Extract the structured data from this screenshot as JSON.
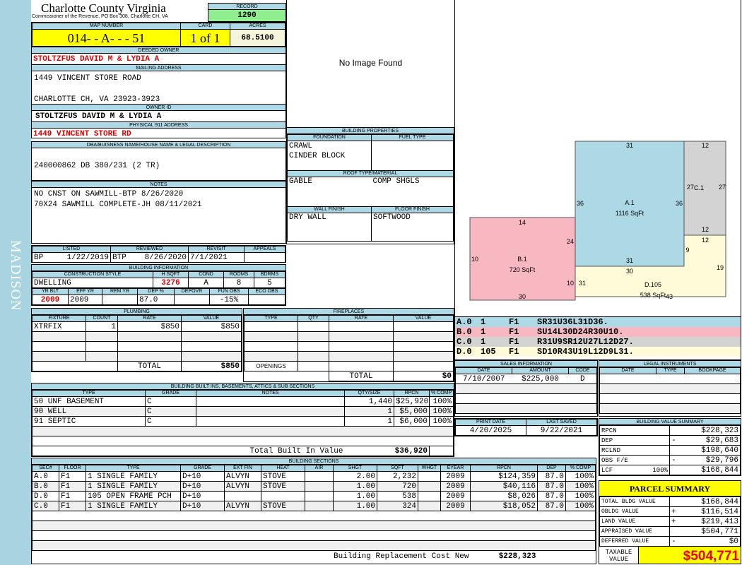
{
  "sidebar": {
    "label": "MADISON"
  },
  "header": {
    "title": "Charlotte County Virginia",
    "subtitle": "Commissioner of the Revenue, PO Box 308, Charlotte CH, VA",
    "record_label": "RECORD",
    "record": "1290"
  },
  "map": {
    "map_label": "MAP NUMBER",
    "map_number": "014- - A- - - 51",
    "card_label": "CARD",
    "card": "1 of 1",
    "acres_label": "ACRES",
    "acres": "68.5100"
  },
  "owner": {
    "deeded_label": "DEEDED OWNER",
    "deeded": "STOLTZFUS DAVID M & LYDIA A",
    "mailing_label": "MAILING ADDRESS",
    "mailing_1": "1449 VINCENT STORE ROAD",
    "mailing_2": "CHARLOTTE CH, VA 23923-3923",
    "id_label": "OWNER ID",
    "id": "STOLTZFUS DAVID M & LYDIA A",
    "physical_label": "PHYSICAL 911 ADDRESS",
    "physical": "1449 VINCENT STORE RD"
  },
  "dba": {
    "label": "DBA/BUISNESS NAME/HOUSE NAME & LEGAL DESCRIPTION",
    "value": "240000862 DB 380/231 (2 TR)"
  },
  "notes": {
    "label": "NOTES",
    "lines": [
      "NO CNST ON SAWMILL-BTP 8/26/2020",
      "70X24 SAWMILL COMPLETE-JH 08/11/2021"
    ]
  },
  "review": {
    "listed_label": "LISTED",
    "listed_by": "BP",
    "listed": "1/22/2019",
    "reviewed_label": "REVIEWED",
    "reviewed_by": "BTP",
    "reviewed": "8/26/2020",
    "revisit_label": "REVISIT",
    "revisit": "7/1/2021",
    "appeals_label": "APPEALS"
  },
  "building_info": {
    "label": "BUILDING INFORMATION",
    "h": [
      "CONSTRUCTION STYLE",
      "H SQFT",
      "COND",
      "ROOMS",
      "BDRMS"
    ],
    "style": "DWELLING",
    "hsqft": "3276",
    "cond": "A",
    "rooms": "8",
    "bdrms": "5",
    "h2": [
      "YR BLT",
      "EFF YR",
      "REM YR",
      "DEP %",
      "DEPOVR",
      "FUN OBS",
      "ECO OBS"
    ],
    "yr_blt": "2009",
    "eff_yr": "2009",
    "dep": "87.0",
    "fun_obs": "-15%"
  },
  "plumbing": {
    "label": "PLUMBING",
    "h": [
      "FIXTURE",
      "COUNT",
      "RATE",
      "VALUE"
    ],
    "rows": [
      [
        "XTRFIX",
        "1",
        "$850",
        "$850"
      ]
    ],
    "total_label": "TOTAL",
    "total": "$850"
  },
  "fireplaces": {
    "label": "FIREPLACES",
    "h": [
      "TYPE",
      "QTY",
      "RATE",
      "VALUE"
    ],
    "openings_label": "OPENINGS",
    "total_label": "TOTAL",
    "total": "$0"
  },
  "builtins": {
    "label": "BUILDING BUILT INS, BASEMENTS, ATTICS & SUB SECTIONS",
    "h": [
      "TYPE",
      "GRADE",
      "NOTES",
      "QTY/SIZE",
      "RPCN",
      "% COMP"
    ],
    "rows": [
      [
        "50 UNF BASEMENT",
        "C",
        "",
        "1,440",
        "$25,920",
        "100%"
      ],
      [
        "90 WELL",
        "C",
        "",
        "1",
        "$5,000",
        "100%"
      ],
      [
        "91 SEPTIC",
        "C",
        "",
        "1",
        "$6,000",
        "100%"
      ]
    ],
    "total_label": "Total Built In Value",
    "total": "$36,920"
  },
  "image": {
    "placeholder": "No Image Found"
  },
  "bprops": {
    "label": "BUILDING PROPERTIES",
    "foundation_label": "FOUNDATION",
    "fuel_label": "FUEL TYPE",
    "foundation": [
      "CRAWL",
      "CINDER BLOCK"
    ],
    "roof_label": "ROOF TYPE/MATERIAL",
    "roof_type": "GABLE",
    "roof_material": "COMP SHGLS",
    "wall_label": "WALL FINISH",
    "wall": "DRY WALL",
    "floor_label": "FLOOR FINISH",
    "floor": "SOFTWOOD"
  },
  "sketch": {
    "areas": [
      {
        "label": "A.1",
        "sqft": "1116 SqFt",
        "color": "#add8e6"
      },
      {
        "label": "B.1",
        "sqft": "720 SqFt",
        "color": "#f7b8c2"
      },
      {
        "label": "C.1",
        "sqft": "",
        "color": "#d3d3d3"
      },
      {
        "label": "D.105",
        "sqft": "538 SqFt",
        "color": "#fffbd8"
      }
    ],
    "dims": [
      "31",
      "36",
      "36",
      "12",
      "27",
      "27",
      "12",
      "12",
      "9",
      "19",
      "31",
      "30",
      "14",
      "24",
      "10",
      "10",
      "31",
      "30",
      "43"
    ]
  },
  "sketch_codes": [
    {
      "sec": "A.0",
      "n": "1",
      "f": "F1",
      "code": "SR31U36L31D36.",
      "color": "#add8e6"
    },
    {
      "sec": "B.0",
      "n": "1",
      "f": "F1",
      "code": "SU14L30D24R30U10.",
      "color": "#f7b8c2"
    },
    {
      "sec": "C.0",
      "n": "1",
      "f": "F1",
      "code": "R31U9SR12U27L12D27.",
      "color": "#d3d3d3"
    },
    {
      "sec": "D.0",
      "n": "105",
      "f": "F1",
      "code": "SD10R43U19L12D9L31.",
      "color": "#fffbd8"
    }
  ],
  "sales": {
    "label": "SALES INFORMATION",
    "h": [
      "DATE",
      "AMOUNT",
      "CODE"
    ],
    "rows": [
      [
        "7/10/2007",
        "$225,000",
        "D"
      ]
    ]
  },
  "legal": {
    "label": "LEGAL INSTRUMENTS",
    "h": [
      "DATE",
      "TYPE",
      "BOOKPAGE"
    ]
  },
  "dates": {
    "print_label": "PRINT DATE",
    "print": "4/20/2025",
    "saved_label": "LAST SAVED",
    "saved": "9/22/2021"
  },
  "bvs": {
    "label": "BUILDING VALUE SUMMARY",
    "rows": [
      [
        "RPCN",
        "",
        "",
        "$228,323"
      ],
      [
        "DEP",
        "",
        "-",
        "$29,683"
      ],
      [
        "RCLND",
        "",
        "",
        "$198,640"
      ],
      [
        "OBS F/E",
        "",
        "-",
        "$29,796"
      ],
      [
        "LCF",
        "100%",
        "",
        "$168,844"
      ]
    ]
  },
  "parcel": {
    "label": "PARCEL SUMMARY",
    "rows": [
      [
        "TOTAL BLDG VALUE",
        "",
        "$168,844"
      ],
      [
        "OBLDG VALUE",
        "+",
        "$116,514"
      ],
      [
        "LAND VALUE",
        "+",
        "$219,413"
      ],
      [
        "APPRAISED VALUE",
        "",
        "$504,771"
      ],
      [
        "DEFERRED VALUE",
        "-",
        "$0"
      ]
    ],
    "taxable_label": "TAXABLE VALUE",
    "taxable": "$504,771"
  },
  "sections": {
    "label": "BUILDING SECTIONS",
    "h": [
      "SEC#",
      "FLOOR",
      "TYPE",
      "GRADE",
      "EXT FIN",
      "HEAT",
      "AIR",
      "SHGT",
      "SQFT",
      "WHGT",
      "EYEAR",
      "RPCN",
      "DEP",
      "% COMP"
    ],
    "rows": [
      [
        "A.0",
        "F1",
        "1 SINGLE FAMILY",
        "D+10",
        "ALVYN",
        "STOVE",
        "",
        "2.00",
        "2,232",
        "",
        "2009",
        "$124,359",
        "87.0",
        "100%"
      ],
      [
        "B.0",
        "F1",
        "1 SINGLE FAMILY",
        "D+10",
        "ALVYN",
        "STOVE",
        "",
        "1.00",
        "720",
        "",
        "2009",
        "$40,116",
        "87.0",
        "100%"
      ],
      [
        "D.0",
        "F1",
        "105 OPEN FRAME PCH",
        "D+10",
        "",
        "",
        "",
        "1.00",
        "538",
        "",
        "2009",
        "$8,026",
        "87.0",
        "100%"
      ],
      [
        "C.0",
        "F1",
        "1 SINGLE FAMILY",
        "D+10",
        "ALVYN",
        "STOVE",
        "",
        "1.00",
        "324",
        "",
        "2009",
        "$18,052",
        "87.0",
        "100%"
      ]
    ],
    "total_label": "Building Replacement Cost New",
    "total": "$228,323"
  }
}
